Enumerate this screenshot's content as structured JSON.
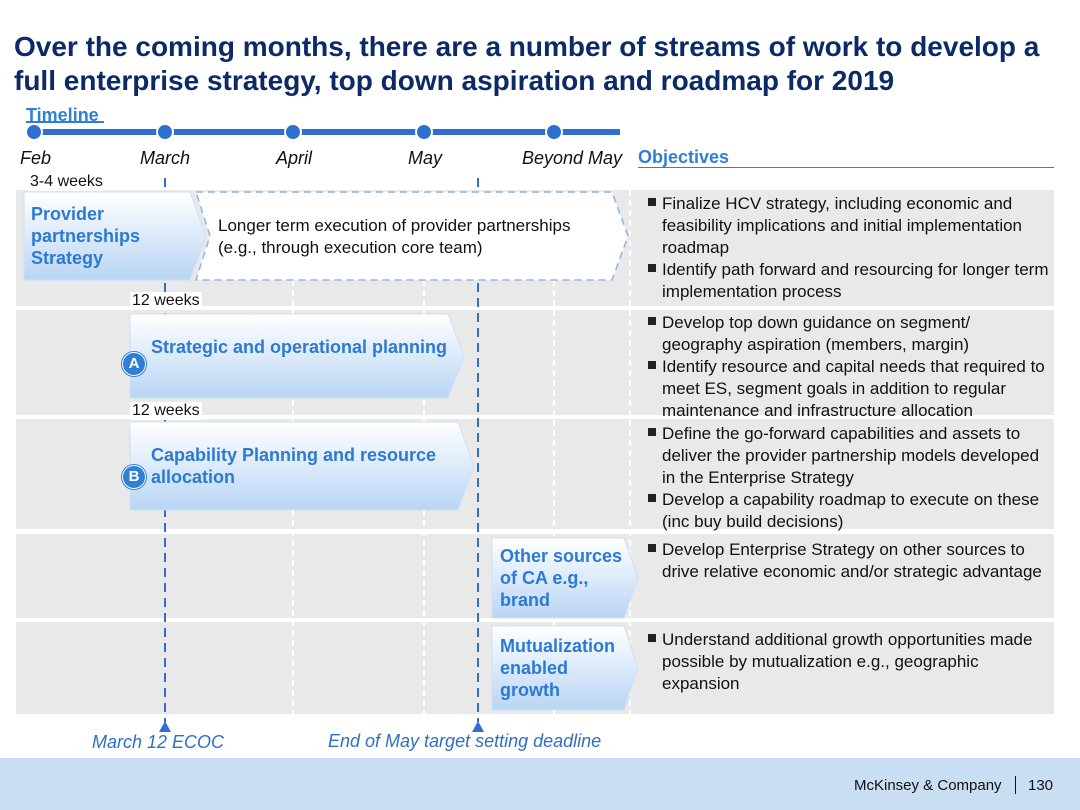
{
  "title": "Over the coming months, there are a number of streams of work to develop a full enterprise strategy, top down aspiration and roadmap for 2019",
  "timeline": {
    "label": "Timeline",
    "months": [
      "Feb",
      "March",
      "April",
      "May",
      "Beyond May"
    ]
  },
  "objectives_header": "Objectives",
  "streams": [
    {
      "duration": "3-4 weeks",
      "label": "Provider partnerships Strategy",
      "badge": "",
      "followup": "Longer term execution of provider partnerships (e.g., through execution core team)",
      "objectives": [
        "Finalize HCV strategy, including economic and feasibility implications and initial implementation roadmap",
        "Identify  path forward and resourcing for longer term implementation process"
      ]
    },
    {
      "duration": "12 weeks",
      "label": "Strategic and operational planning",
      "badge": "A",
      "objectives": [
        "Develop top down guidance on segment/ geography aspiration (members, margin)",
        "Identify resource and capital needs that required to meet ES, segment goals in addition to regular maintenance and infrastructure allocation"
      ]
    },
    {
      "duration": "12 weeks",
      "label": "Capability Planning and resource allocation",
      "badge": "B",
      "objectives": [
        "Define the go-forward capabilities and assets to deliver the provider partnership models developed in the Enterprise Strategy",
        "Develop a capability roadmap to execute on these (inc buy build decisions)"
      ]
    },
    {
      "duration": "",
      "label": "Other sources of CA e.g., brand",
      "badge": "",
      "objectives": [
        "Develop Enterprise Strategy on other sources to drive relative economic and/or strategic advantage"
      ]
    },
    {
      "duration": "",
      "label": "Mutualization enabled growth",
      "badge": "",
      "objectives": [
        "Understand additional growth opportunities made possible by mutualization e.g., geographic expansion"
      ]
    }
  ],
  "milestones": [
    "March 12 ECOC",
    "End of May target setting deadline"
  ],
  "footer": {
    "company": "McKinsey & Company",
    "page": "130"
  },
  "colors": {
    "title": "#0b2a66",
    "accent": "#2f7fd6",
    "arrow_text": "#2c7ad2",
    "row_bg": "#e9e9e9",
    "footer_bg": "#c9ddf3"
  }
}
